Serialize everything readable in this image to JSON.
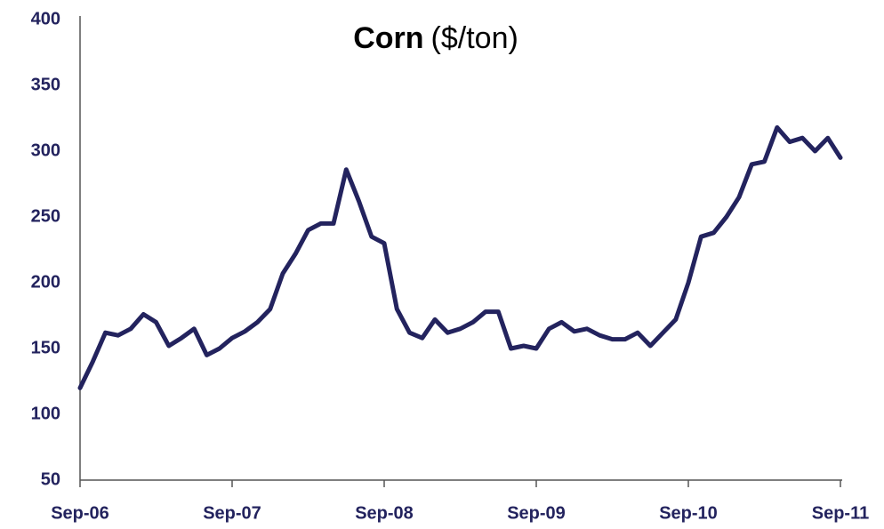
{
  "chart_data": {
    "type": "line",
    "title": "Corn",
    "unit_label": "($/ton)",
    "categories": [
      "Sep-06",
      null,
      null,
      null,
      null,
      null,
      null,
      null,
      null,
      null,
      null,
      null,
      "Sep-07",
      null,
      null,
      null,
      null,
      null,
      null,
      null,
      null,
      null,
      null,
      null,
      "Sep-08",
      null,
      null,
      null,
      null,
      null,
      null,
      null,
      null,
      null,
      null,
      null,
      "Sep-09",
      null,
      null,
      null,
      null,
      null,
      null,
      null,
      null,
      null,
      null,
      null,
      "Sep-10",
      null,
      null,
      null,
      null,
      null,
      null,
      null,
      null,
      null,
      null,
      null,
      "Sep-11"
    ],
    "series": [
      {
        "name": "Corn",
        "color": "#23235e",
        "values": [
          120,
          140,
          162,
          160,
          165,
          176,
          170,
          152,
          158,
          165,
          145,
          150,
          158,
          163,
          170,
          180,
          207,
          222,
          240,
          245,
          245,
          286,
          262,
          235,
          230,
          180,
          162,
          158,
          172,
          162,
          165,
          170,
          178,
          178,
          150,
          152,
          150,
          165,
          170,
          163,
          165,
          160,
          157,
          157,
          162,
          152,
          162,
          172,
          200,
          235,
          238,
          250,
          265,
          290,
          292,
          318,
          307,
          310,
          300,
          310,
          295
        ]
      }
    ],
    "ylim": [
      50,
      400
    ],
    "yticks": [
      50,
      100,
      150,
      200,
      250,
      300,
      350,
      400
    ],
    "grid": false
  }
}
